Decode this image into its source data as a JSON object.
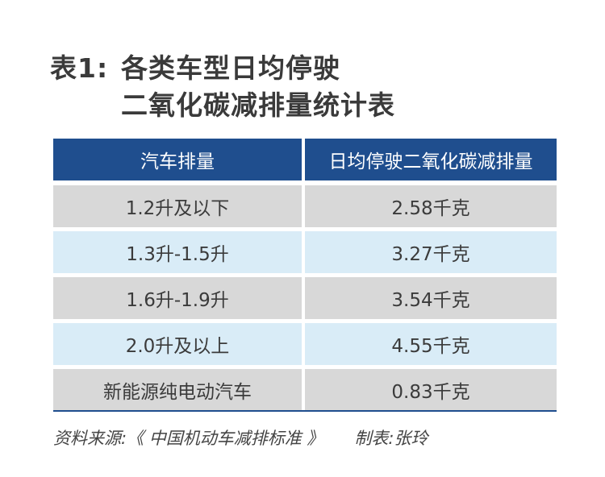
{
  "title": {
    "prefix": "表1:",
    "line1": "各类车型日均停驶",
    "line2": "二氧化碳减排量统计表"
  },
  "table": {
    "headers": [
      "汽车排量",
      "日均停驶二氧化碳减排量"
    ],
    "rows": [
      [
        "1.2升及以下",
        "2.58千克"
      ],
      [
        "1.3升-1.5升",
        "3.27千克"
      ],
      [
        "1.6升-1.9升",
        "3.54千克"
      ],
      [
        "2.0升及以上",
        "4.55千克"
      ],
      [
        "新能源纯电动汽车",
        "0.83千克"
      ]
    ]
  },
  "footer": {
    "source": "资料来源:《 中国机动车减排标准 》",
    "maker": "制表:张玲"
  }
}
